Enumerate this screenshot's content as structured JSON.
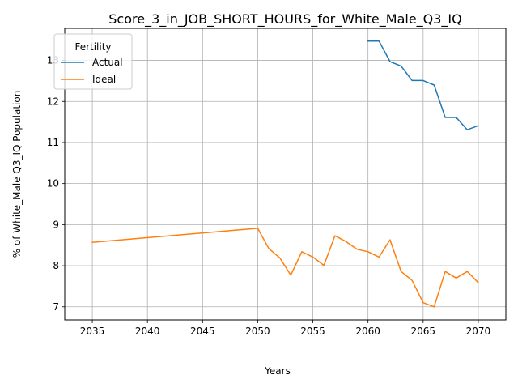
{
  "chart_data": {
    "type": "line",
    "title": "Score_3_in_JOB_SHORT_HOURS_for_White_Male_Q3_IQ",
    "xlabel": "Years",
    "ylabel": "% of White_Male Q3_IQ Population",
    "xlim": [
      2032.5,
      2072.5
    ],
    "ylim": [
      6.68,
      13.78
    ],
    "xticks": [
      2035,
      2040,
      2045,
      2050,
      2055,
      2060,
      2065,
      2070
    ],
    "yticks": [
      7,
      8,
      9,
      10,
      11,
      12,
      13
    ],
    "grid": true,
    "legend": {
      "title": "Fertility",
      "placement": "top-left"
    },
    "series": [
      {
        "name": "Actual",
        "color": "#1f77b4",
        "x": [
          2060,
          2061,
          2062,
          2063,
          2064,
          2065,
          2066,
          2067,
          2068,
          2069,
          2070
        ],
        "y": [
          13.47,
          13.47,
          12.97,
          12.86,
          12.51,
          12.51,
          12.4,
          11.61,
          11.61,
          11.31,
          11.41
        ]
      },
      {
        "name": "Ideal",
        "color": "#ff7f0e",
        "x": [
          2035,
          2050,
          2051,
          2052,
          2053,
          2054,
          2055,
          2056,
          2057,
          2058,
          2059,
          2060,
          2061,
          2062,
          2063,
          2064,
          2065,
          2066,
          2067,
          2068,
          2069,
          2070
        ],
        "y": [
          8.57,
          8.91,
          8.42,
          8.19,
          7.77,
          8.34,
          8.21,
          8.01,
          8.73,
          8.59,
          8.4,
          8.34,
          8.21,
          8.63,
          7.86,
          7.64,
          7.1,
          7.0,
          7.86,
          7.7,
          7.86,
          7.59
        ]
      }
    ]
  }
}
